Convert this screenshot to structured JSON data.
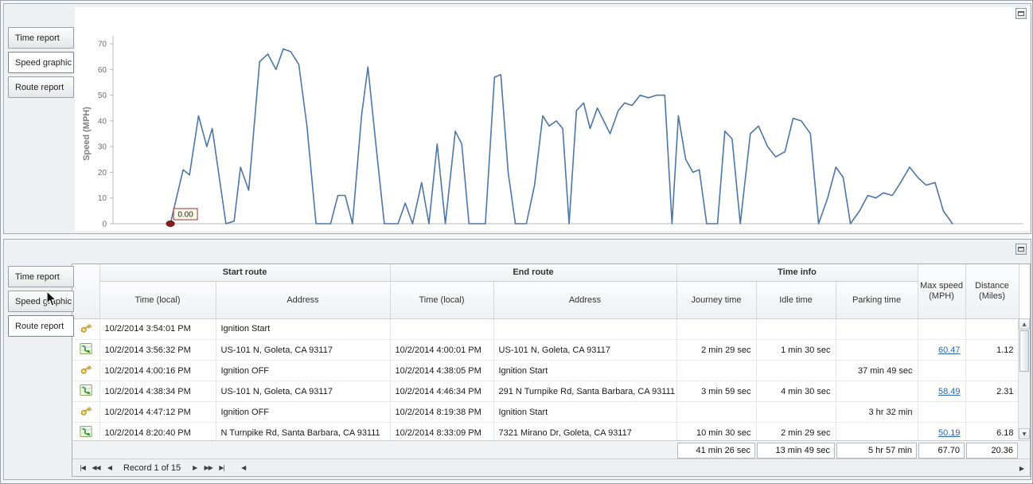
{
  "top_panel": {
    "tabs": [
      {
        "label": "Time report",
        "selected": false
      },
      {
        "label": "Speed graphic",
        "selected": true
      },
      {
        "label": "Route report",
        "selected": false
      }
    ]
  },
  "chart_data": {
    "type": "line",
    "title": "",
    "xlabel": "",
    "ylabel": "Speed (MPH)",
    "ylim": [
      0,
      70
    ],
    "yticks": [
      0,
      10,
      20,
      30,
      40,
      50,
      60,
      70
    ],
    "grid": false,
    "legend": "none",
    "line_color": "#4b76a8",
    "marker": {
      "t": 6.3,
      "value": 0,
      "label": "0.00",
      "color": "#8c1b1b"
    },
    "series": [
      {
        "name": "Speed (MPH)",
        "points": [
          [
            6.3,
            0
          ],
          [
            7.7,
            21
          ],
          [
            8.4,
            19
          ],
          [
            9.4,
            42
          ],
          [
            10.3,
            30
          ],
          [
            10.9,
            37
          ],
          [
            12.4,
            0
          ],
          [
            13.3,
            1
          ],
          [
            14,
            22
          ],
          [
            14.9,
            13
          ],
          [
            16.1,
            63
          ],
          [
            17,
            66
          ],
          [
            17.9,
            60
          ],
          [
            18.7,
            68
          ],
          [
            19.5,
            67
          ],
          [
            20.4,
            62
          ],
          [
            21.3,
            38
          ],
          [
            22.3,
            0
          ],
          [
            23.9,
            0
          ],
          [
            24.7,
            11
          ],
          [
            25.5,
            11
          ],
          [
            26.3,
            0
          ],
          [
            27.3,
            42
          ],
          [
            28,
            61
          ],
          [
            28.9,
            30
          ],
          [
            29.8,
            0
          ],
          [
            31.3,
            0
          ],
          [
            32.1,
            8
          ],
          [
            32.9,
            0
          ],
          [
            33.9,
            16
          ],
          [
            34.7,
            0
          ],
          [
            35.6,
            31
          ],
          [
            36.5,
            0
          ],
          [
            37.6,
            36
          ],
          [
            38.3,
            31
          ],
          [
            39.1,
            0
          ],
          [
            40.9,
            0
          ],
          [
            41.9,
            57
          ],
          [
            42.6,
            58
          ],
          [
            43.4,
            20
          ],
          [
            44.2,
            0
          ],
          [
            45.4,
            0
          ],
          [
            46.3,
            15
          ],
          [
            47.2,
            42
          ],
          [
            47.9,
            38
          ],
          [
            48.7,
            40
          ],
          [
            49.4,
            37
          ],
          [
            50.1,
            0
          ],
          [
            50.9,
            44
          ],
          [
            51.7,
            47
          ],
          [
            52.4,
            37
          ],
          [
            53.2,
            45
          ],
          [
            53.9,
            40
          ],
          [
            54.6,
            35
          ],
          [
            55.5,
            44
          ],
          [
            56.2,
            47
          ],
          [
            57,
            46
          ],
          [
            57.9,
            50
          ],
          [
            58.8,
            49
          ],
          [
            59.7,
            50
          ],
          [
            60.6,
            50
          ],
          [
            61.4,
            0
          ],
          [
            62.1,
            42
          ],
          [
            62.9,
            25
          ],
          [
            63.7,
            20
          ],
          [
            64.4,
            21
          ],
          [
            65.2,
            0
          ],
          [
            66.4,
            0
          ],
          [
            67.2,
            36
          ],
          [
            68,
            33
          ],
          [
            68.9,
            0
          ],
          [
            70,
            35
          ],
          [
            70.9,
            38
          ],
          [
            71.9,
            30
          ],
          [
            72.8,
            26
          ],
          [
            73.8,
            28
          ],
          [
            74.7,
            41
          ],
          [
            75.6,
            40
          ],
          [
            76.6,
            35
          ],
          [
            77.5,
            0
          ],
          [
            78.5,
            10
          ],
          [
            79.4,
            22
          ],
          [
            80.2,
            18
          ],
          [
            81,
            0
          ],
          [
            82,
            5
          ],
          [
            82.9,
            11
          ],
          [
            83.8,
            10
          ],
          [
            84.6,
            12
          ],
          [
            85.6,
            11
          ],
          [
            86.5,
            16
          ],
          [
            87.5,
            22
          ],
          [
            88.4,
            18
          ],
          [
            89.3,
            15
          ],
          [
            90.3,
            16
          ],
          [
            91.2,
            5
          ],
          [
            92.2,
            0
          ]
        ]
      }
    ]
  },
  "bottom_panel": {
    "tabs": [
      {
        "label": "Time report",
        "selected": false
      },
      {
        "label": "Speed graphic",
        "selected": false
      },
      {
        "label": "Route report",
        "selected": true
      }
    ],
    "grid": {
      "groups": [
        {
          "label": "Start route"
        },
        {
          "label": "End route"
        },
        {
          "label": "Time info"
        }
      ],
      "columns": [
        {
          "label": ""
        },
        {
          "label": "Time (local)"
        },
        {
          "label": "Address"
        },
        {
          "label": "Time (local)"
        },
        {
          "label": "Address"
        },
        {
          "label": "Journey time"
        },
        {
          "label": "Idle time"
        },
        {
          "label": "Parking time"
        },
        {
          "label": "Max speed (MPH)"
        },
        {
          "label": "Distance (Miles)"
        }
      ],
      "rows": [
        {
          "icon": "key",
          "start_time": "10/2/2014 3:54:01 PM",
          "start_address": "Ignition Start",
          "end_time": "",
          "end_address": "",
          "journey": "",
          "idle": "",
          "parking": "",
          "max_speed": "",
          "max_speed_link": false,
          "distance": ""
        },
        {
          "icon": "route",
          "start_time": "10/2/2014 3:56:32 PM",
          "start_address": "US-101 N, Goleta, CA 93117",
          "end_time": "10/2/2014 4:00:01 PM",
          "end_address": "US-101 N, Goleta, CA 93117",
          "journey": "2 min 29 sec",
          "idle": "1 min 30 sec",
          "parking": "",
          "max_speed": "60.47",
          "max_speed_link": true,
          "distance": "1.12"
        },
        {
          "icon": "key",
          "start_time": "10/2/2014 4:00:16 PM",
          "start_address": "Ignition OFF",
          "end_time": "10/2/2014 4:38:05 PM",
          "end_address": "Ignition Start",
          "journey": "",
          "idle": "",
          "parking": "37 min 49 sec",
          "max_speed": "",
          "max_speed_link": false,
          "distance": ""
        },
        {
          "icon": "route",
          "start_time": "10/2/2014 4:38:34 PM",
          "start_address": "US-101 N, Goleta, CA 93117",
          "end_time": "10/2/2014 4:46:34 PM",
          "end_address": "291 N Turnpike Rd, Santa Barbara, CA 93111",
          "journey": "3 min 59 sec",
          "idle": "4 min 30 sec",
          "parking": "",
          "max_speed": "58.49",
          "max_speed_link": true,
          "distance": "2.31"
        },
        {
          "icon": "key",
          "start_time": "10/2/2014 4:47:12 PM",
          "start_address": "Ignition OFF",
          "end_time": "10/2/2014 8:19:38 PM",
          "end_address": "Ignition Start",
          "journey": "",
          "idle": "",
          "parking": "3 hr 32 min",
          "max_speed": "",
          "max_speed_link": false,
          "distance": ""
        },
        {
          "icon": "route",
          "start_time": "10/2/2014 8:20:40 PM",
          "start_address": "N Turnpike Rd, Santa Barbara, CA 93111",
          "end_time": "10/2/2014 8:33:09 PM",
          "end_address": "7321 Mirano Dr, Goleta, CA 93117",
          "journey": "10 min 30 sec",
          "idle": "2 min 29 sec",
          "parking": "",
          "max_speed": "50.19",
          "max_speed_link": true,
          "distance": "6.18"
        }
      ],
      "summary": {
        "journey": "41 min 26 sec",
        "idle": "13 min 49 sec",
        "parking": "5 hr 57 min",
        "max_speed": "67.70",
        "distance": "20.36"
      },
      "navigator": {
        "first": "|◀",
        "prev_page": "◀◀",
        "prev": "◀",
        "text": "Record 1 of 15",
        "next": "▶",
        "next_page": "▶▶",
        "last": "▶|"
      }
    }
  },
  "icons": {
    "up": "▲",
    "down": "▼",
    "left": "◀",
    "right": "▶"
  }
}
